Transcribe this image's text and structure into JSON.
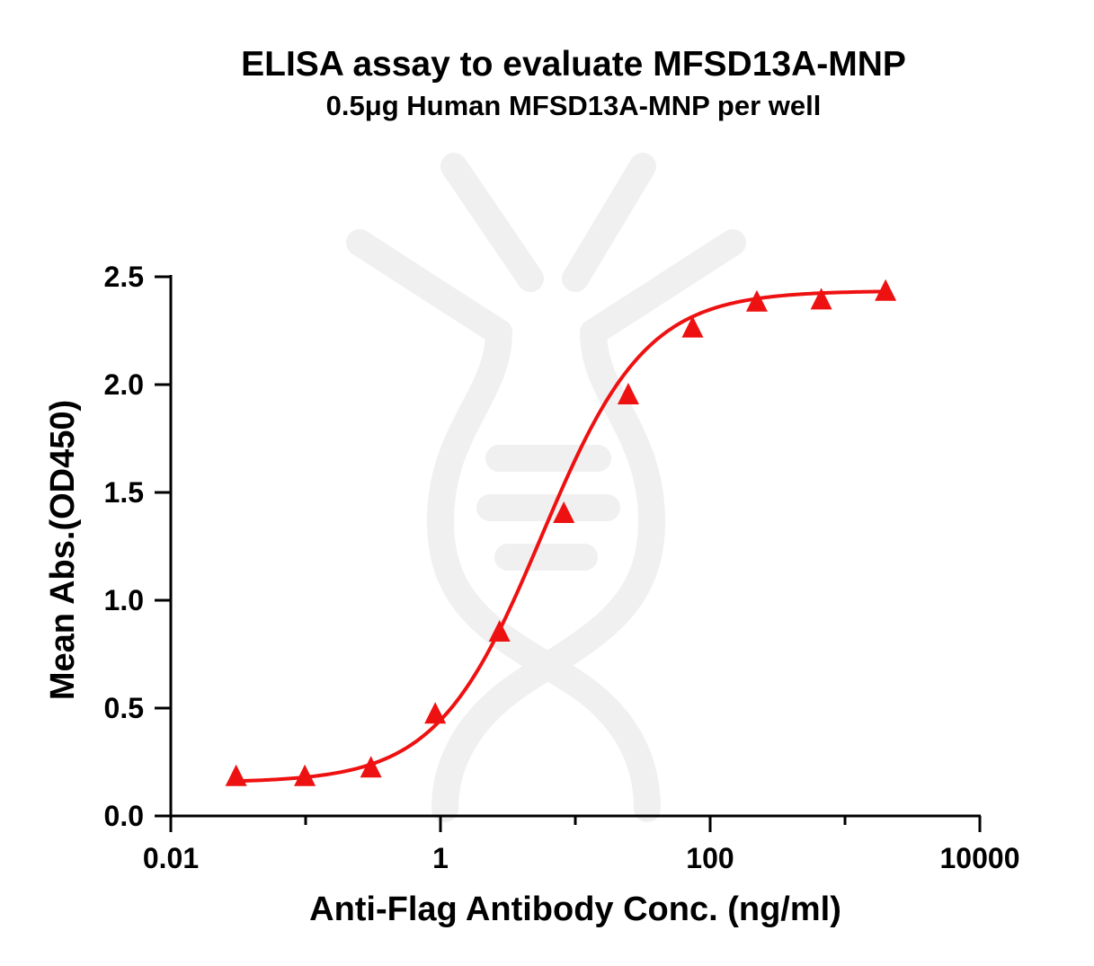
{
  "chart_data": {
    "type": "scatter",
    "title": "ELISA assay to evaluate MFSD13A-MNP",
    "subtitle": "0.5μg Human MFSD13A-MNP per well",
    "xlabel": "Anti-Flag Antibody Conc. (ng/ml)",
    "ylabel": "Mean Abs.(OD450)",
    "x_scale": "log",
    "xlim": [
      0.01,
      10000
    ],
    "ylim": [
      0,
      2.5
    ],
    "x_ticks": [
      0.01,
      1,
      100,
      10000
    ],
    "x_tick_labels": [
      "0.01",
      "1",
      "100",
      "10000"
    ],
    "y_ticks": [
      0,
      0.5,
      1,
      1.5,
      2,
      2.5
    ],
    "y_tick_labels": [
      "0.0",
      "0.5",
      "1.0",
      "1.5",
      "2.0",
      "2.5"
    ],
    "grid": false,
    "series": [
      {
        "marker": "triangle",
        "color": "#ee1111",
        "fit": "4PL sigmoid curve",
        "x": [
          0.0305,
          0.0986,
          0.305,
          0.914,
          2.74,
          8.22,
          24.7,
          74.1,
          222,
          667,
          2000
        ],
        "y": [
          0.18,
          0.18,
          0.22,
          0.47,
          0.85,
          1.4,
          1.95,
          2.26,
          2.38,
          2.39,
          2.43
        ]
      }
    ],
    "fit_curve": {
      "model": "4PL",
      "bottom": 0.155,
      "top": 2.435,
      "ec50": 5.6,
      "hill": 1.12,
      "x_range": [
        0.0305,
        2000
      ]
    }
  }
}
